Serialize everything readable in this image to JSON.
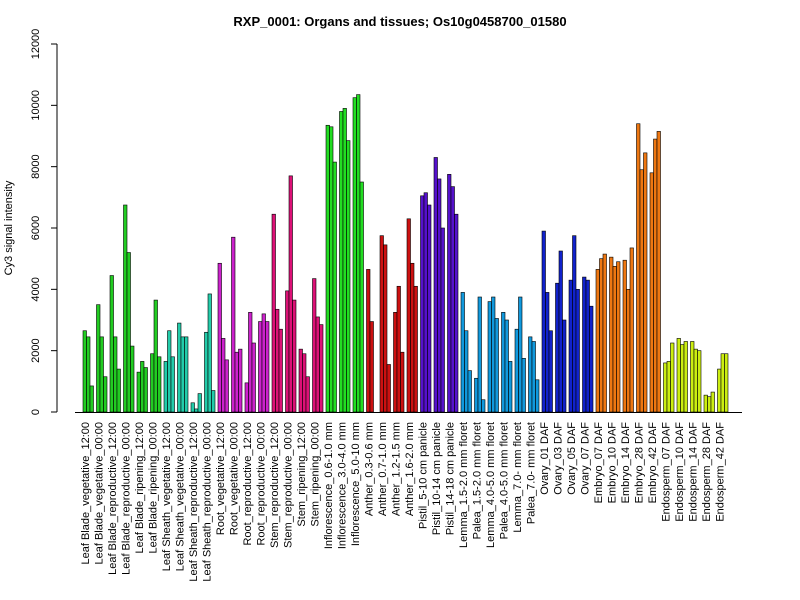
{
  "chart_data": {
    "type": "bar",
    "title": "RXP_0001: Organs and tissues; Os10g0458700_01580",
    "xlabel": "",
    "ylabel": "Cy3 signal intensity",
    "ylim": [
      0,
      12000
    ],
    "yticks": [
      0,
      2000,
      4000,
      6000,
      8000,
      10000,
      12000
    ],
    "grid": false,
    "legend": "none",
    "category_labels": [
      "Leaf Blade_vegetative_12:00",
      "Leaf Blade_vegetative_00:00",
      "Leaf Blade_reproductive_12:00",
      "Leaf Blade_reproductive_00:00",
      "Leaf Blade_ripening_12:00",
      "Leaf Blade_ripening_00:00",
      "Leaf Sheath_vegetative_12:00",
      "Leaf Sheath_vegetative_00:00",
      "Leaf Sheath_reproductive_12:00",
      "Leaf Sheath_reproductive_00:00",
      "Root_vegetative_12:00",
      "Root_vegetative_00:00",
      "Root_reproductive_12:00",
      "Root_reproductive_00:00",
      "Stem_reproductive_12:00",
      "Stem_reproductive_00:00",
      "Stem_ripening_12:00",
      "Stem_ripening_00:00",
      "Inflorescence_0.6-1.0 mm",
      "Inflorescence_3.0-4.0 mm",
      "Inflorescence_5.0-10 mm",
      "Anther_0.3-0.6 mm",
      "Anther_0.7-1.0 mm",
      "Anther_1.2-1.5 mm",
      "Anther_1.6-2.0 mm",
      "Pistil_5-10 cm panicle",
      "Pistil_10-14 cm panicle",
      "Pistil_14-18 cm panicle",
      "Lemma_1.5-2.0 mm floret",
      "Palea_1.5-2.0 mm floret",
      "Lemma_4.0-5.0 mm floret",
      "Palea_4.0-5.0 mm floret",
      "Lemma_7.0- mm floret",
      "Palea_7.0- mm floret",
      "Ovary_01 DAF",
      "Ovary_03 DAF",
      "Ovary_05 DAF",
      "Ovary_07 DAF",
      "Embryo_07 DAF",
      "Embryo_10 DAF",
      "Embryo_14 DAF",
      "Embryo_28 DAF",
      "Embryo_42 DAF",
      "Endosperm_07 DAF",
      "Endosperm_10 DAF",
      "Endosperm_14 DAF",
      "Endosperm_28 DAF",
      "Endosperm_42 DAF"
    ],
    "bars_per_category": 3,
    "colors": [
      "#22cc22",
      "#22cc22",
      "#22cc22",
      "#22cc22",
      "#22cc22",
      "#22cc22",
      "#22ccaa",
      "#22ccaa",
      "#22ccaa",
      "#22ccaa",
      "#cc22cc",
      "#cc22cc",
      "#cc22cc",
      "#cc22cc",
      "#dd1177",
      "#dd1177",
      "#dd1177",
      "#dd1177",
      "#22dd22",
      "#22dd22",
      "#22dd22",
      "#cc1111",
      "#cc1111",
      "#cc1111",
      "#cc1111",
      "#5511cc",
      "#5511cc",
      "#5511cc",
      "#1199dd",
      "#1199dd",
      "#1199dd",
      "#1199dd",
      "#1199dd",
      "#1199dd",
      "#1122cc",
      "#1122cc",
      "#1122cc",
      "#1122cc",
      "#ee7711",
      "#ee7711",
      "#ee7711",
      "#ee7711",
      "#ee7711",
      "#ccee11",
      "#ccee11",
      "#ccee11",
      "#ccee11",
      "#ccee11"
    ],
    "values": [
      [
        2650,
        2450,
        850
      ],
      [
        3500,
        2450,
        1150
      ],
      [
        4450,
        2450,
        1400
      ],
      [
        6750,
        5200,
        2150
      ],
      [
        1300,
        1650,
        1450
      ],
      [
        1900,
        3650,
        1800
      ],
      [
        1650,
        2650,
        1800
      ],
      [
        2900,
        2450,
        2450
      ],
      [
        300,
        100,
        600
      ],
      [
        2600,
        3850,
        700
      ],
      [
        4850,
        2400,
        1700
      ],
      [
        5700,
        1950,
        2050
      ],
      [
        950,
        3250,
        2250
      ],
      [
        2950,
        3200,
        2950
      ],
      [
        6450,
        3350,
        2700
      ],
      [
        3950,
        7700,
        3650
      ],
      [
        2050,
        1900,
        1150
      ],
      [
        4350,
        3100,
        2850
      ],
      [
        9350,
        9300,
        8150
      ],
      [
        9800,
        9900,
        8850
      ],
      [
        10250,
        10350,
        7500
      ],
      [
        4650,
        2950,
        0
      ],
      [
        5750,
        5450,
        1550
      ],
      [
        3250,
        4100,
        1950
      ],
      [
        6300,
        4850,
        4100
      ],
      [
        7050,
        7150,
        6750
      ],
      [
        8300,
        7600,
        6000
      ],
      [
        7750,
        7350,
        6450
      ],
      [
        3900,
        2650,
        1350
      ],
      [
        1100,
        3750,
        400
      ],
      [
        3600,
        3750,
        3050
      ],
      [
        3250,
        3000,
        1650
      ],
      [
        2700,
        3750,
        1750
      ],
      [
        2450,
        2300,
        1050
      ],
      [
        5900,
        3900,
        2650
      ],
      [
        4200,
        5250,
        3000
      ],
      [
        4300,
        5750,
        4000
      ],
      [
        4400,
        4300,
        3450
      ],
      [
        4650,
        5000,
        5150
      ],
      [
        5050,
        4750,
        4900
      ],
      [
        4950,
        4000,
        5350
      ],
      [
        9400,
        7900,
        8450
      ],
      [
        7800,
        8900,
        9150
      ],
      [
        1600,
        1650,
        2250
      ],
      [
        2400,
        2200,
        2300
      ],
      [
        2300,
        2050,
        2000
      ],
      [
        550,
        500,
        650
      ],
      [
        1400,
        1900,
        1900
      ]
    ]
  }
}
